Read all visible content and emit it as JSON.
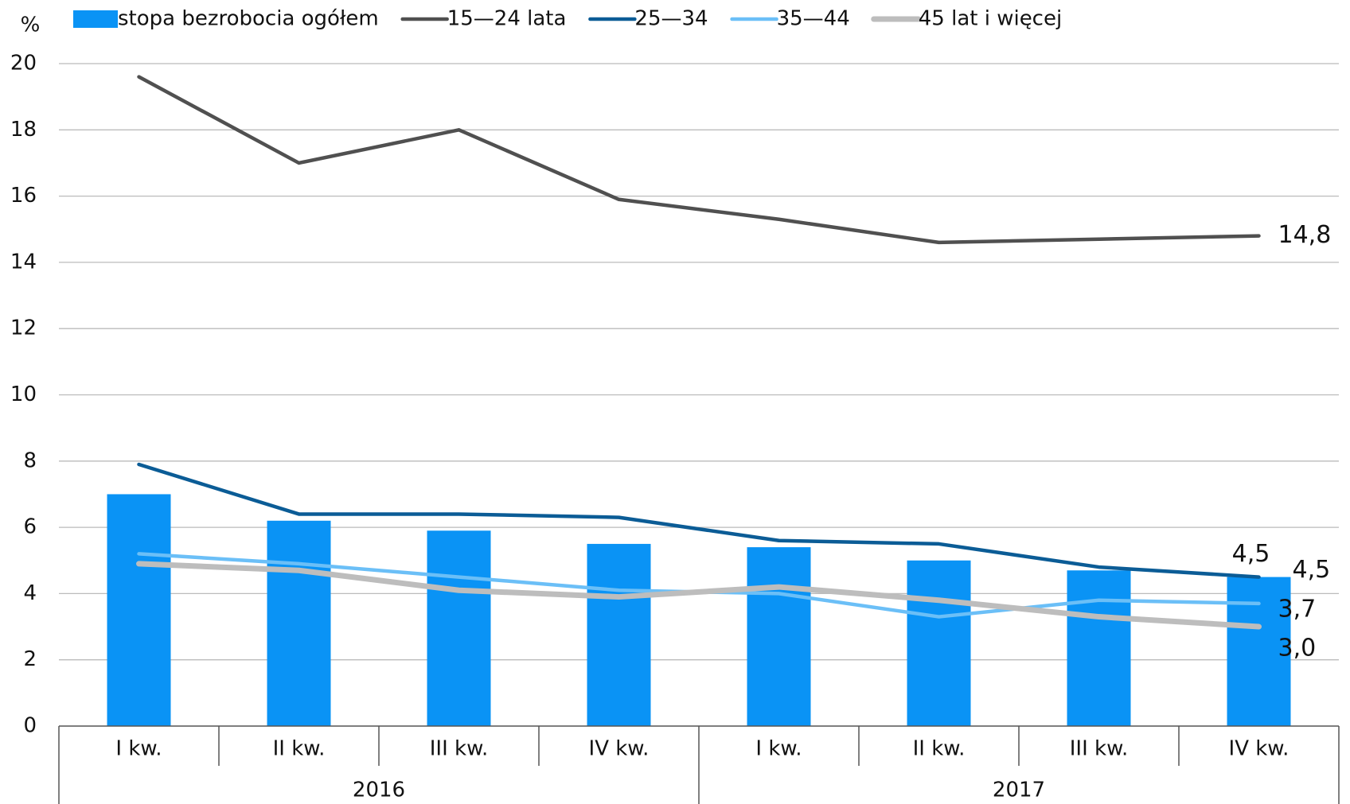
{
  "chart_data": {
    "type": "bar-line",
    "y_axis_label": "%",
    "categories": [
      "I kw.",
      "II kw.",
      "III kw.",
      "IV kw.",
      "I kw.",
      "II kw.",
      "III kw.",
      "IV kw."
    ],
    "groups": [
      "2016",
      "2017"
    ],
    "bar": {
      "name": "stopa bezrobocia ogółem",
      "color": "#0a93f5",
      "values": [
        7.0,
        6.2,
        5.9,
        5.5,
        5.4,
        5.0,
        4.7,
        4.5
      ],
      "value_labels": [
        null,
        null,
        null,
        null,
        null,
        null,
        null,
        "4,5"
      ]
    },
    "series": [
      {
        "name": "15—24 lata",
        "color": "#505050",
        "values": [
          19.6,
          17.0,
          18.0,
          15.9,
          15.3,
          14.6,
          14.7,
          14.8
        ],
        "value_labels": [
          null,
          null,
          null,
          null,
          null,
          null,
          null,
          "14,8"
        ]
      },
      {
        "name": "25—34",
        "color": "#0b5c96",
        "values": [
          7.9,
          6.4,
          6.4,
          6.3,
          5.6,
          5.5,
          4.8,
          4.5
        ],
        "value_labels": [
          null,
          null,
          null,
          null,
          null,
          null,
          null,
          "4,5"
        ]
      },
      {
        "name": "35—44",
        "color": "#6bbff7",
        "values": [
          5.2,
          4.9,
          4.5,
          4.1,
          4.0,
          3.3,
          3.8,
          3.7
        ],
        "value_labels": [
          null,
          null,
          null,
          null,
          null,
          null,
          null,
          "3,7"
        ]
      },
      {
        "name": "45 lat i więcej",
        "color": "#bdbdbd",
        "values": [
          4.9,
          4.7,
          4.1,
          3.9,
          4.2,
          3.8,
          3.3,
          3.0
        ],
        "value_labels": [
          null,
          null,
          null,
          null,
          null,
          null,
          null,
          "3,0"
        ]
      }
    ],
    "ylim": [
      0,
      20
    ],
    "yticks": [
      0,
      2,
      4,
      6,
      8,
      10,
      12,
      14,
      16,
      18,
      20
    ],
    "grid": true
  }
}
